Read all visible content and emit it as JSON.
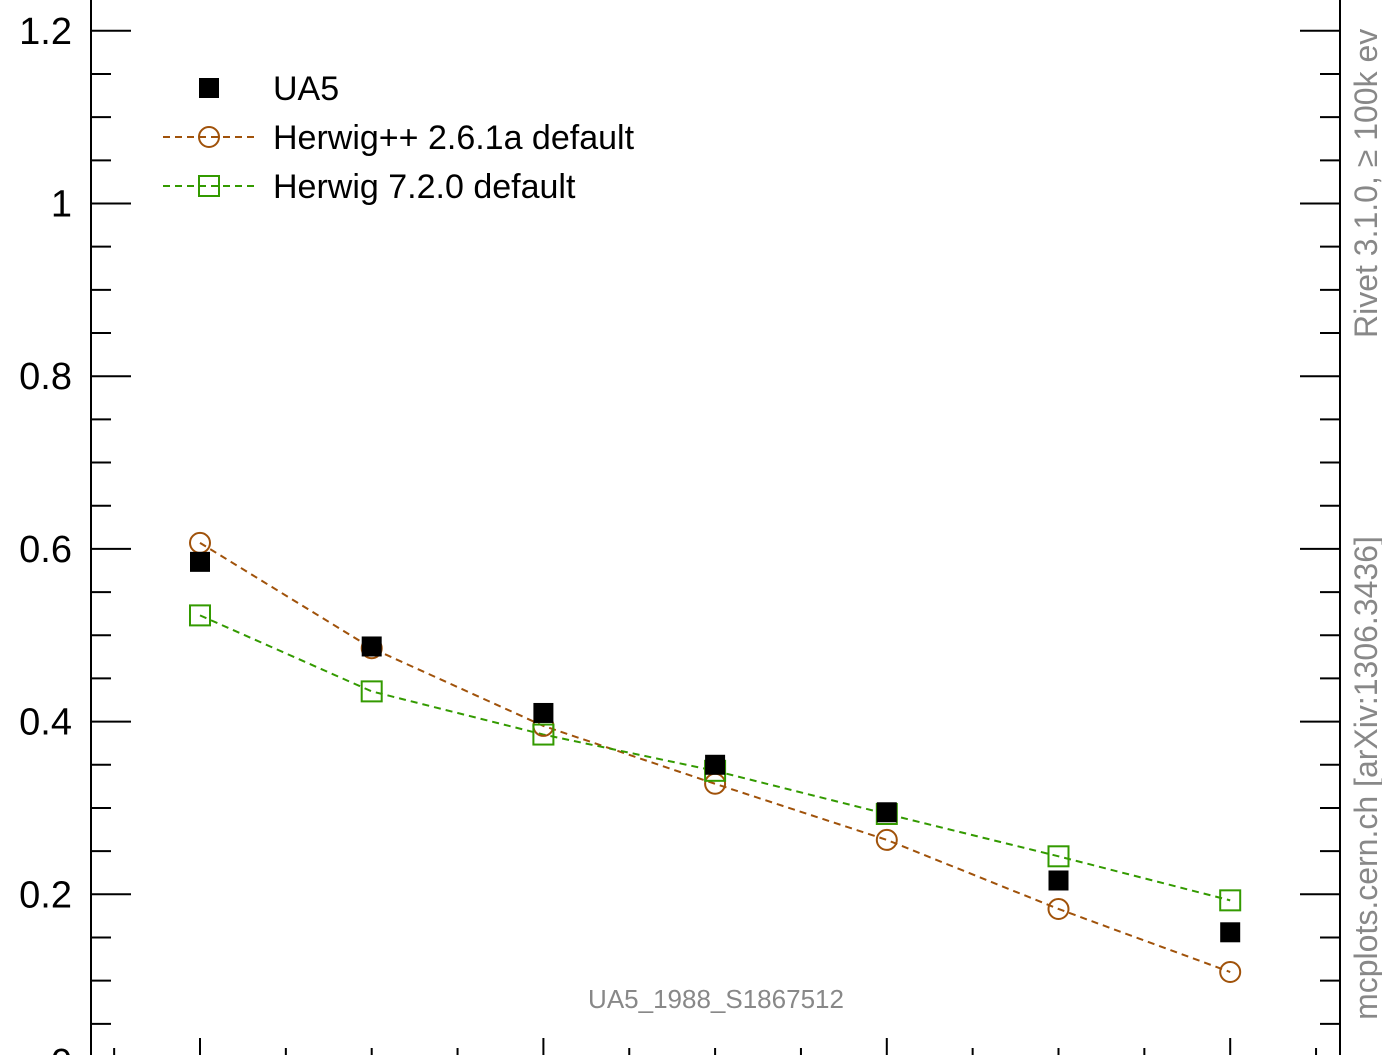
{
  "chart_data": {
    "type": "scatter",
    "x": [
      1,
      2,
      3,
      4,
      5,
      6,
      7
    ],
    "xlim": [
      0.4,
      7.6
    ],
    "ylim": [
      0.0,
      1.235
    ],
    "yticks": [
      {
        "value": 0.2,
        "label": "0.2"
      },
      {
        "value": 0.4,
        "label": "0.4"
      },
      {
        "value": 0.6,
        "label": "0.6"
      },
      {
        "value": 0.8,
        "label": "0.8"
      },
      {
        "value": 1.0,
        "label": "1"
      },
      {
        "value": 1.2,
        "label": "1.2"
      }
    ],
    "bottom_partial_tick_label": "0",
    "grid": false,
    "legend_position": "top-left",
    "series": [
      {
        "name": "UA5",
        "style": "marker",
        "marker": "filled-square",
        "color": "#000000",
        "values": [
          0.585,
          0.487,
          0.41,
          0.35,
          0.295,
          0.216,
          0.156
        ]
      },
      {
        "name": "Herwig++ 2.6.1a default",
        "style": "dashed",
        "marker": "open-circle",
        "color": "#a0520a",
        "values": [
          0.607,
          0.485,
          0.395,
          0.328,
          0.263,
          0.183,
          0.11
        ]
      },
      {
        "name": "Herwig 7.2.0 default",
        "style": "dashed",
        "marker": "open-square",
        "color": "#339a00",
        "values": [
          0.523,
          0.435,
          0.385,
          0.343,
          0.293,
          0.244,
          0.193
        ]
      }
    ],
    "watermark": "UA5_1988_S1867512",
    "side_text_lower": "mcplots.cern.ch [arXiv:1306.3436]",
    "side_text_upper": "Rivet 3.1.0, ≥ 100k ev"
  }
}
